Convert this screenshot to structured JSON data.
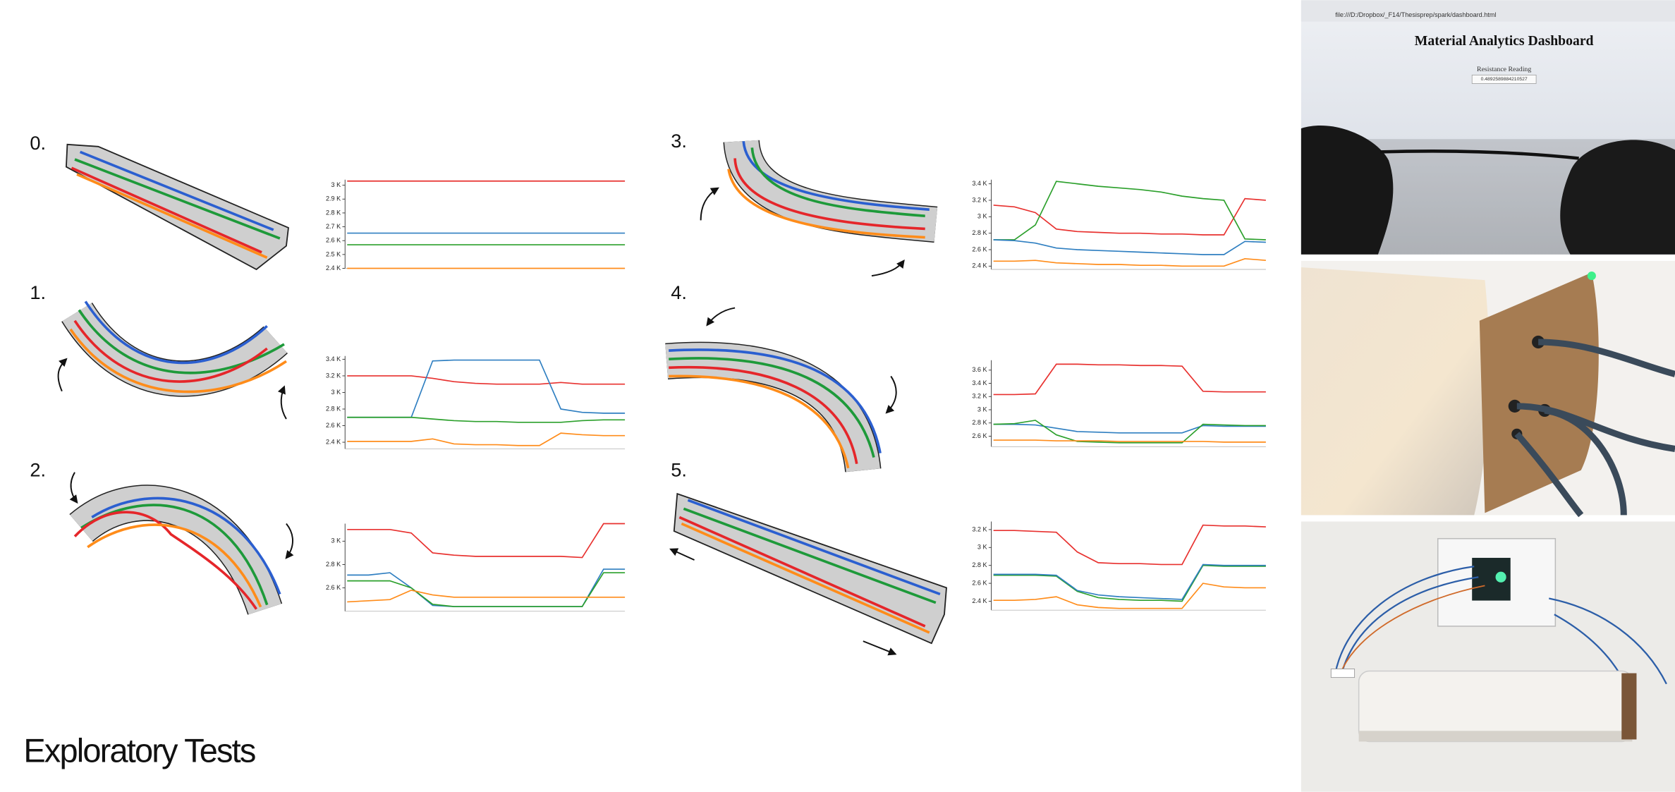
{
  "title": "Exploratory Tests",
  "dashboard_photo": {
    "url": "file:///D:/Dropbox/_F14/Thesisprep/spark/dashboard.html",
    "heading": "Material Analytics Dashboard",
    "label": "Resistance Reading",
    "reading": "0.4892589884210527"
  },
  "chart_data": [
    {
      "type": "line",
      "title": "0.",
      "categories": [
        null,
        null,
        null,
        null,
        null,
        null,
        null,
        null,
        null,
        null,
        null,
        null,
        null,
        null
      ],
      "ylim": [
        2400,
        3040
      ],
      "yticks": [
        {
          "value": 3000,
          "label": "3 K"
        },
        {
          "value": 2900,
          "label": "2.9 K"
        },
        {
          "value": 2800,
          "label": "2.8 K"
        },
        {
          "value": 2700,
          "label": "2.7 K"
        },
        {
          "value": 2600,
          "label": "2.6 K"
        },
        {
          "value": 2500,
          "label": "2.5 K"
        },
        {
          "value": 2400,
          "label": "2.4 K"
        }
      ],
      "series": [
        {
          "color": "#e8312f",
          "values": [
            3030,
            3030,
            3030,
            3030,
            3030,
            3030,
            3030,
            3030,
            3030,
            3030,
            3030,
            3030,
            3030,
            3030
          ]
        },
        {
          "color": "#2f7fc1",
          "values": [
            2654,
            2654,
            2654,
            2654,
            2654,
            2654,
            2654,
            2654,
            2654,
            2654,
            2654,
            2654,
            2654,
            2654
          ]
        },
        {
          "color": "#2ca02c",
          "values": [
            2570,
            2570,
            2570,
            2570,
            2570,
            2570,
            2570,
            2570,
            2570,
            2570,
            2570,
            2570,
            2570,
            2570
          ]
        },
        {
          "color": "#ff8c1a",
          "values": [
            2400,
            2400,
            2400,
            2400,
            2400,
            2400,
            2400,
            2400,
            2400,
            2400,
            2400,
            2400,
            2400,
            2400
          ]
        }
      ]
    },
    {
      "type": "line",
      "title": "1.",
      "categories": [
        null,
        null,
        null,
        null,
        null,
        null,
        null,
        null,
        null,
        null,
        null,
        null,
        null,
        null
      ],
      "ylim": [
        2320,
        3440
      ],
      "yticks": [
        {
          "value": 3400,
          "label": "3.4 K"
        },
        {
          "value": 3200,
          "label": "3.2 K"
        },
        {
          "value": 3000,
          "label": "3 K"
        },
        {
          "value": 2800,
          "label": "2.8 K"
        },
        {
          "value": 2600,
          "label": "2.6 K"
        },
        {
          "value": 2400,
          "label": "2.4 K"
        }
      ],
      "series": [
        {
          "color": "#e8312f",
          "values": [
            3200,
            3200,
            3200,
            3200,
            3170,
            3130,
            3110,
            3100,
            3100,
            3100,
            3120,
            3100,
            3100,
            3100
          ]
        },
        {
          "color": "#2f7fc1",
          "values": [
            2700,
            2700,
            2700,
            2700,
            3380,
            3390,
            3390,
            3390,
            3390,
            3390,
            2800,
            2760,
            2750,
            2750
          ]
        },
        {
          "color": "#2ca02c",
          "values": [
            2700,
            2700,
            2700,
            2700,
            2680,
            2660,
            2650,
            2650,
            2640,
            2640,
            2640,
            2660,
            2670,
            2670
          ]
        },
        {
          "color": "#ff8c1a",
          "values": [
            2410,
            2410,
            2410,
            2410,
            2440,
            2380,
            2370,
            2370,
            2360,
            2360,
            2510,
            2490,
            2480,
            2480
          ]
        }
      ]
    },
    {
      "type": "line",
      "title": "2.",
      "categories": [
        null,
        null,
        null,
        null,
        null,
        null,
        null,
        null,
        null,
        null,
        null,
        null,
        null,
        null
      ],
      "ylim": [
        2400,
        3150
      ],
      "yticks": [
        {
          "value": 3000,
          "label": "3 K"
        },
        {
          "value": 2800,
          "label": "2.8 K"
        },
        {
          "value": 2600,
          "label": "2.6 K"
        }
      ],
      "series": [
        {
          "color": "#e8312f",
          "values": [
            3100,
            3100,
            3100,
            3070,
            2900,
            2880,
            2870,
            2870,
            2870,
            2870,
            2870,
            2860,
            3150,
            3150
          ]
        },
        {
          "color": "#2f7fc1",
          "values": [
            2710,
            2710,
            2730,
            2600,
            2450,
            2440,
            2440,
            2440,
            2440,
            2440,
            2440,
            2440,
            2760,
            2760
          ]
        },
        {
          "color": "#2ca02c",
          "values": [
            2660,
            2660,
            2660,
            2600,
            2460,
            2440,
            2440,
            2440,
            2440,
            2440,
            2440,
            2440,
            2730,
            2730
          ]
        },
        {
          "color": "#ff8c1a",
          "values": [
            2480,
            2490,
            2500,
            2580,
            2540,
            2520,
            2520,
            2520,
            2520,
            2520,
            2520,
            2520,
            2520,
            2520
          ]
        }
      ]
    },
    {
      "type": "line",
      "title": "3.",
      "categories": [
        null,
        null,
        null,
        null,
        null,
        null,
        null,
        null,
        null,
        null,
        null,
        null,
        null,
        null
      ],
      "ylim": [
        2360,
        3450
      ],
      "yticks": [
        {
          "value": 3400,
          "label": "3.4 K"
        },
        {
          "value": 3200,
          "label": "3.2 K"
        },
        {
          "value": 3000,
          "label": "3 K"
        },
        {
          "value": 2800,
          "label": "2.8 K"
        },
        {
          "value": 2600,
          "label": "2.6 K"
        },
        {
          "value": 2400,
          "label": "2.4 K"
        }
      ],
      "series": [
        {
          "color": "#e8312f",
          "values": [
            3140,
            3120,
            3050,
            2850,
            2820,
            2810,
            2800,
            2800,
            2790,
            2790,
            2780,
            2780,
            3220,
            3200
          ]
        },
        {
          "color": "#2ca02c",
          "values": [
            2720,
            2720,
            2900,
            3430,
            3400,
            3370,
            3350,
            3330,
            3300,
            3250,
            3220,
            3200,
            2730,
            2720
          ]
        },
        {
          "color": "#2f7fc1",
          "values": [
            2720,
            2710,
            2680,
            2620,
            2600,
            2590,
            2580,
            2570,
            2560,
            2550,
            2540,
            2540,
            2700,
            2690
          ]
        },
        {
          "color": "#ff8c1a",
          "values": [
            2460,
            2460,
            2470,
            2440,
            2430,
            2420,
            2420,
            2410,
            2410,
            2400,
            2400,
            2400,
            2490,
            2470
          ]
        }
      ]
    },
    {
      "type": "line",
      "title": "4.",
      "categories": [
        null,
        null,
        null,
        null,
        null,
        null,
        null,
        null,
        null,
        null,
        null,
        null,
        null,
        null
      ],
      "ylim": [
        2440,
        3750
      ],
      "yticks": [
        {
          "value": 3600,
          "label": "3.6 K"
        },
        {
          "value": 3400,
          "label": "3.4 K"
        },
        {
          "value": 3200,
          "label": "3.2 K"
        },
        {
          "value": 3000,
          "label": "3 K"
        },
        {
          "value": 2800,
          "label": "2.8 K"
        },
        {
          "value": 2600,
          "label": "2.6 K"
        }
      ],
      "series": [
        {
          "color": "#e8312f",
          "values": [
            3230,
            3230,
            3240,
            3690,
            3690,
            3680,
            3680,
            3670,
            3670,
            3660,
            3280,
            3270,
            3270,
            3270
          ]
        },
        {
          "color": "#2f7fc1",
          "values": [
            2780,
            2780,
            2770,
            2720,
            2670,
            2660,
            2650,
            2650,
            2650,
            2650,
            2760,
            2750,
            2750,
            2750
          ]
        },
        {
          "color": "#2ca02c",
          "values": [
            2780,
            2790,
            2840,
            2620,
            2520,
            2510,
            2500,
            2500,
            2500,
            2500,
            2780,
            2770,
            2760,
            2760
          ]
        },
        {
          "color": "#ff8c1a",
          "values": [
            2540,
            2540,
            2540,
            2530,
            2530,
            2530,
            2520,
            2520,
            2520,
            2520,
            2520,
            2510,
            2510,
            2510
          ]
        }
      ]
    },
    {
      "type": "line",
      "title": "5.",
      "categories": [
        null,
        null,
        null,
        null,
        null,
        null,
        null,
        null,
        null,
        null,
        null,
        null,
        null,
        null
      ],
      "ylim": [
        2300,
        3290
      ],
      "yticks": [
        {
          "value": 3200,
          "label": "3.2 K"
        },
        {
          "value": 3000,
          "label": "3 K"
        },
        {
          "value": 2800,
          "label": "2.8 K"
        },
        {
          "value": 2600,
          "label": "2.6 K"
        },
        {
          "value": 2400,
          "label": "2.4 K"
        }
      ],
      "series": [
        {
          "color": "#e8312f",
          "values": [
            3190,
            3190,
            3180,
            3170,
            2950,
            2830,
            2820,
            2820,
            2810,
            2810,
            3250,
            3240,
            3240,
            3230
          ]
        },
        {
          "color": "#2ca02c",
          "values": [
            2690,
            2690,
            2690,
            2680,
            2510,
            2440,
            2420,
            2410,
            2410,
            2400,
            2800,
            2790,
            2790,
            2790
          ]
        },
        {
          "color": "#2f7fc1",
          "values": [
            2700,
            2700,
            2700,
            2690,
            2520,
            2470,
            2450,
            2440,
            2430,
            2420,
            2810,
            2800,
            2800,
            2800
          ]
        },
        {
          "color": "#ff8c1a",
          "values": [
            2410,
            2410,
            2420,
            2450,
            2360,
            2330,
            2320,
            2320,
            2320,
            2320,
            2600,
            2560,
            2550,
            2550
          ]
        }
      ]
    }
  ]
}
